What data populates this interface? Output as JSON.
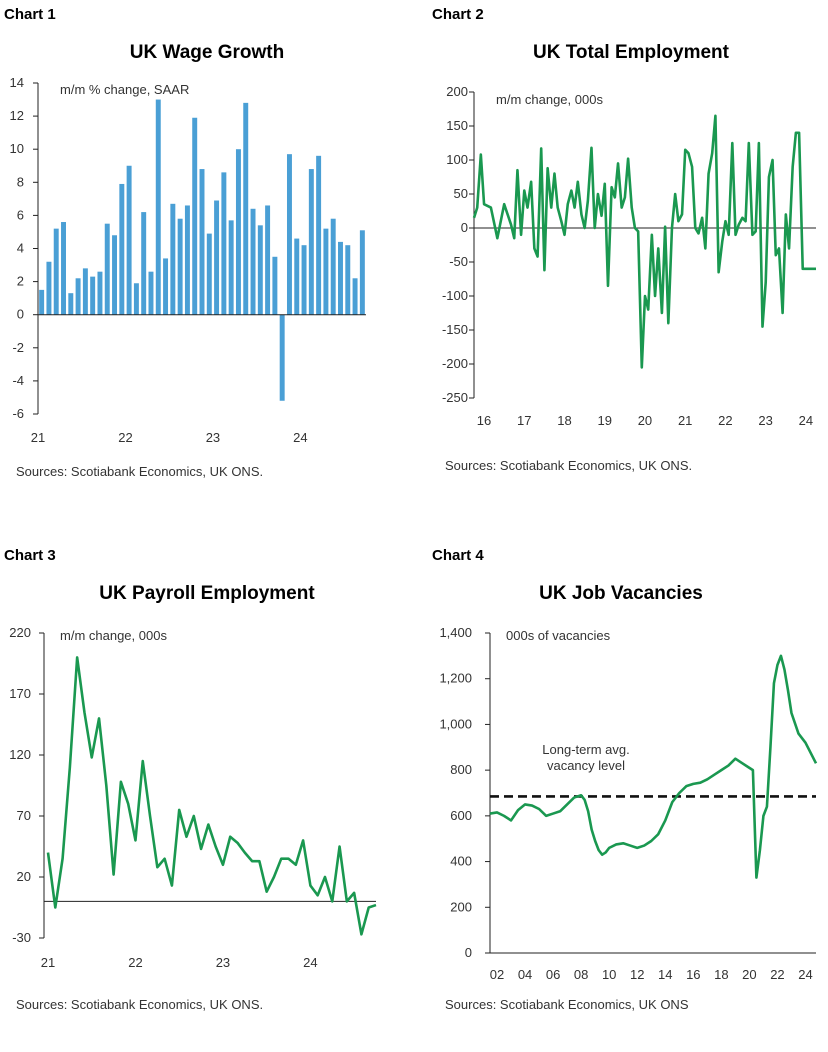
{
  "chart_data": [
    {
      "id": "chart1",
      "label": "Chart 1",
      "type": "bar",
      "title": "UK Wage Growth",
      "unit_label": "m/m % change, SAAR",
      "source": "Sources: Scotiabank Economics, UK ONS.",
      "color": "#4a9fd5",
      "ylim": [
        -6,
        14
      ],
      "yticks": [
        14,
        12,
        10,
        8,
        6,
        4,
        2,
        0,
        -2,
        -4,
        -6
      ],
      "xtick_labels": [
        "21",
        "22",
        "23",
        "24"
      ],
      "xtick_index": [
        0,
        12,
        24,
        36
      ],
      "values": [
        1.5,
        3.2,
        5.2,
        5.6,
        1.3,
        2.2,
        2.8,
        2.3,
        2.6,
        5.5,
        4.8,
        7.9,
        9.0,
        1.9,
        6.2,
        2.6,
        13.0,
        3.4,
        6.7,
        5.8,
        6.6,
        11.9,
        8.8,
        4.9,
        6.9,
        8.6,
        5.7,
        10.0,
        12.8,
        6.4,
        5.4,
        6.6,
        3.5,
        -5.2,
        9.7,
        4.6,
        4.2,
        8.8,
        9.6,
        5.2,
        5.8,
        4.4,
        4.2,
        2.2,
        5.1
      ]
    },
    {
      "id": "chart2",
      "label": "Chart 2",
      "type": "line",
      "title": "UK Total Employment",
      "unit_label": "m/m change, 000s",
      "source": "Sources: Scotiabank Economics, UK ONS.",
      "color": "#1a9850",
      "ylim": [
        -250,
        200
      ],
      "yticks": [
        200,
        150,
        100,
        50,
        0,
        -50,
        -100,
        -150,
        -200,
        -250
      ],
      "xtick_labels": [
        "16",
        "17",
        "18",
        "19",
        "20",
        "21",
        "22",
        "23",
        "24"
      ],
      "xtick_years": [
        2016,
        2017,
        2018,
        2019,
        2020,
        2021,
        2022,
        2023,
        2024
      ],
      "x": [
        2016.0,
        2016.08,
        2016.17,
        2016.25,
        2016.42,
        2016.58,
        2016.75,
        2016.92,
        2017.0,
        2017.08,
        2017.17,
        2017.25,
        2017.33,
        2017.42,
        2017.5,
        2017.58,
        2017.67,
        2017.75,
        2017.83,
        2017.92,
        2018.0,
        2018.08,
        2018.17,
        2018.25,
        2018.33,
        2018.42,
        2018.5,
        2018.58,
        2018.67,
        2018.75,
        2018.83,
        2018.92,
        2019.0,
        2019.08,
        2019.17,
        2019.25,
        2019.33,
        2019.42,
        2019.5,
        2019.58,
        2019.67,
        2019.75,
        2019.83,
        2019.92,
        2020.0,
        2020.08,
        2020.17,
        2020.25,
        2020.33,
        2020.42,
        2020.5,
        2020.58,
        2020.67,
        2020.75,
        2020.83,
        2020.92,
        2021.0,
        2021.08,
        2021.17,
        2021.25,
        2021.33,
        2021.42,
        2021.5,
        2021.58,
        2021.67,
        2021.75,
        2021.83,
        2021.92,
        2022.0,
        2022.08,
        2022.17,
        2022.25,
        2022.33,
        2022.42,
        2022.5,
        2022.58,
        2022.67,
        2022.75,
        2022.83,
        2022.92,
        2023.0,
        2023.08,
        2023.17,
        2023.25,
        2023.33,
        2023.42,
        2023.5,
        2023.58,
        2023.67,
        2023.75,
        2023.83,
        2023.92,
        2024.0,
        2024.08,
        2024.17,
        2024.25,
        2024.33,
        2024.42,
        2024.5
      ],
      "values": [
        15,
        30,
        108,
        35,
        30,
        -15,
        35,
        5,
        -15,
        85,
        -10,
        55,
        30,
        68,
        -30,
        -42,
        117,
        -62,
        88,
        30,
        80,
        30,
        10,
        -10,
        35,
        55,
        30,
        68,
        20,
        0,
        40,
        118,
        0,
        50,
        18,
        65,
        -85,
        60,
        45,
        95,
        30,
        45,
        102,
        30,
        0,
        -5,
        -205,
        -100,
        -120,
        -10,
        -100,
        -30,
        -125,
        2,
        -140,
        0,
        50,
        10,
        20,
        115,
        110,
        90,
        0,
        -8,
        15,
        -30,
        80,
        110,
        165,
        -65,
        -20,
        10,
        -10,
        125,
        -10,
        5,
        15,
        10,
        125,
        -10,
        -5,
        125,
        -145,
        -80,
        75,
        100,
        -40,
        -30,
        -125,
        20,
        -30,
        90,
        140,
        140,
        -60,
        -60,
        -60,
        -60,
        -60
      ]
    },
    {
      "id": "chart3",
      "label": "Chart 3",
      "type": "line",
      "title": "UK Payroll Employment",
      "unit_label": "m/m change, 000s",
      "source": "Sources: Scotiabank Economics, UK ONS.",
      "color": "#1a9850",
      "ylim": [
        -30,
        220
      ],
      "yticks": [
        220,
        170,
        120,
        70,
        20,
        -30
      ],
      "xtick_labels": [
        "21",
        "22",
        "23",
        "24"
      ],
      "xtick_index": [
        0,
        12,
        24,
        36
      ],
      "values": [
        40,
        -5,
        35,
        110,
        200,
        155,
        118,
        150,
        95,
        22,
        98,
        80,
        50,
        115,
        70,
        28,
        35,
        13,
        75,
        53,
        70,
        43,
        63,
        45,
        30,
        53,
        48,
        40,
        33,
        33,
        8,
        20,
        35,
        35,
        30,
        50,
        13,
        5,
        20,
        0,
        45,
        0,
        7,
        -27,
        -5,
        -3
      ]
    },
    {
      "id": "chart4",
      "label": "Chart 4",
      "type": "line",
      "title": "UK Job Vacancies",
      "unit_label": "000s of vacancies",
      "source": "Sources: Scotiabank Economics, UK ONS",
      "annotation": [
        "Long-term avg.",
        "vacancy level"
      ],
      "color": "#1a9850",
      "ref_color": "#111111",
      "ref_value": 685,
      "ylim": [
        0,
        1400
      ],
      "yticks": [
        "1,400",
        "1,200",
        "1,000",
        "800",
        "600",
        "400",
        "200",
        "0"
      ],
      "ytick_values": [
        1400,
        1200,
        1000,
        800,
        600,
        400,
        200,
        0
      ],
      "xtick_labels": [
        "02",
        "04",
        "06",
        "08",
        "10",
        "12",
        "14",
        "16",
        "18",
        "20",
        "22",
        "24"
      ],
      "xtick_years": [
        2002,
        2004,
        2006,
        2008,
        2010,
        2012,
        2014,
        2016,
        2018,
        2020,
        2022,
        2024
      ],
      "x": [
        2001.5,
        2002.0,
        2002.5,
        2003.0,
        2003.5,
        2004.0,
        2004.5,
        2005.0,
        2005.5,
        2006.0,
        2006.5,
        2007.0,
        2007.5,
        2008.0,
        2008.25,
        2008.5,
        2008.75,
        2009.0,
        2009.25,
        2009.5,
        2009.75,
        2010.0,
        2010.5,
        2011.0,
        2011.5,
        2012.0,
        2012.5,
        2013.0,
        2013.5,
        2014.0,
        2014.5,
        2015.0,
        2015.5,
        2016.0,
        2016.5,
        2017.0,
        2017.5,
        2018.0,
        2018.5,
        2019.0,
        2019.5,
        2020.0,
        2020.25,
        2020.5,
        2020.75,
        2021.0,
        2021.25,
        2021.5,
        2021.75,
        2022.0,
        2022.25,
        2022.5,
        2022.75,
        2023.0,
        2023.5,
        2024.0,
        2024.5,
        2024.75
      ],
      "values": [
        610,
        615,
        600,
        580,
        625,
        650,
        645,
        630,
        600,
        610,
        620,
        650,
        680,
        690,
        670,
        620,
        540,
        490,
        450,
        430,
        440,
        460,
        475,
        480,
        470,
        460,
        470,
        490,
        520,
        580,
        660,
        700,
        730,
        740,
        745,
        760,
        780,
        800,
        820,
        850,
        830,
        810,
        800,
        330,
        450,
        600,
        640,
        900,
        1180,
        1260,
        1300,
        1240,
        1150,
        1050,
        960,
        920,
        860,
        830
      ]
    }
  ]
}
